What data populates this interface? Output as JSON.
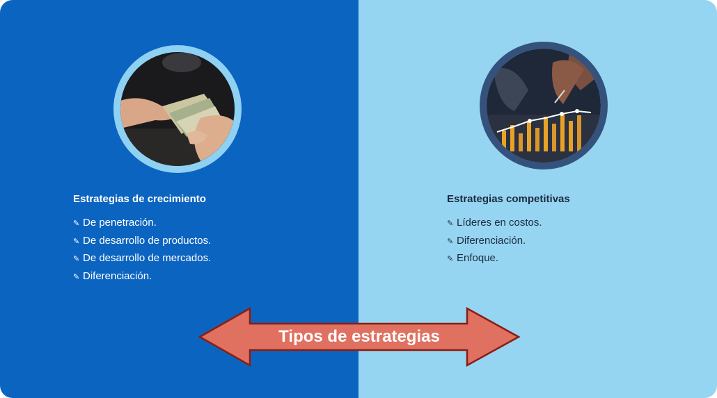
{
  "colors": {
    "left_panel": "#0c64c1",
    "right_panel": "#96d5f2",
    "arrow_fill": "#e07060",
    "arrow_stroke": "#8a1e12"
  },
  "left": {
    "image_icon": "money-hands-photo",
    "heading": "Estrategias de crecimiento",
    "items": [
      {
        "bullet": "✎",
        "text": "De penetración."
      },
      {
        "bullet": "✎",
        "text": "De desarrollo de productos."
      },
      {
        "bullet": "✎",
        "text": "De desarrollo de mercados."
      },
      {
        "bullet": "✎",
        "text": "Diferenciación."
      }
    ]
  },
  "right": {
    "image_icon": "business-chart-photo",
    "heading": "Estrategias competitivas",
    "items": [
      {
        "bullet": "✎",
        "text": "Líderes en costos."
      },
      {
        "bullet": "✎",
        "text": "Diferenciación."
      },
      {
        "bullet": "✎",
        "text": "Enfoque."
      }
    ]
  },
  "arrow": {
    "label": "Tipos de estrategias"
  }
}
